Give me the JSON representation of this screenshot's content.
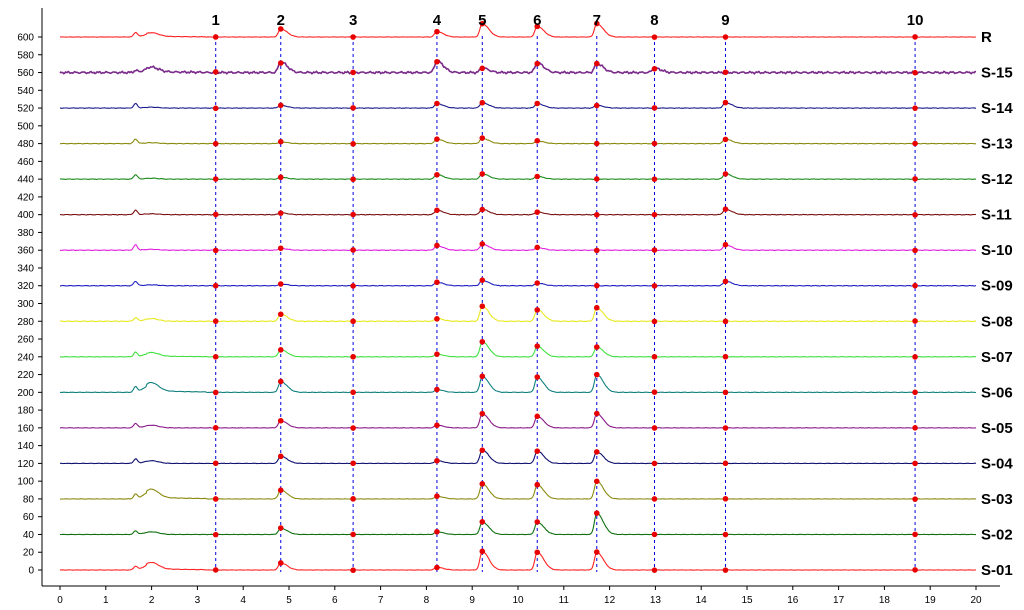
{
  "chart_data": {
    "type": "line",
    "title": "",
    "xlabel": "",
    "ylabel": "",
    "xlim": [
      0,
      20
    ],
    "ylim": [
      0,
      610
    ],
    "x_ticks": [
      0,
      1,
      2,
      3,
      4,
      5,
      6,
      7,
      8,
      9,
      10,
      11,
      12,
      13,
      14,
      15,
      16,
      17,
      18,
      19,
      20
    ],
    "y_ticks": [
      0,
      20,
      40,
      60,
      80,
      100,
      120,
      140,
      160,
      180,
      200,
      220,
      240,
      260,
      280,
      300,
      320,
      340,
      360,
      380,
      400,
      420,
      440,
      460,
      480,
      500,
      520,
      540,
      560,
      580,
      600
    ],
    "grid": false,
    "legend": "none",
    "peaks": [
      {
        "label": "1",
        "x": 3.4
      },
      {
        "label": "2",
        "x": 4.82
      },
      {
        "label": "3",
        "x": 6.4
      },
      {
        "label": "4",
        "x": 8.23
      },
      {
        "label": "5",
        "x": 9.22
      },
      {
        "label": "6",
        "x": 10.42
      },
      {
        "label": "7",
        "x": 11.72
      },
      {
        "label": "8",
        "x": 12.98
      },
      {
        "label": "9",
        "x": 14.53
      },
      {
        "label": "10",
        "x": 18.67
      }
    ],
    "bumps": [
      {
        "x": 1.65,
        "w": 0.04
      },
      {
        "x": 2.0,
        "w": 0.15
      }
    ],
    "series": [
      {
        "name": "R",
        "baseline": 600,
        "color": "#ff2020",
        "peak_heights": [
          0,
          9,
          0,
          6,
          15,
          12,
          15,
          0,
          0,
          0
        ],
        "bumps": [
          5,
          4
        ],
        "noise": 0.3
      },
      {
        "name": "S-15",
        "baseline": 560,
        "color": "#7a2a8a",
        "peak_heights": [
          0,
          12,
          0,
          13,
          5,
          11,
          10,
          5,
          0,
          0
        ],
        "bumps": [
          2,
          5
        ],
        "noise": 1.4
      },
      {
        "name": "S-14",
        "baseline": 520,
        "color": "#1a1a8a",
        "peak_heights": [
          0,
          3,
          0,
          5,
          6,
          5,
          3,
          0,
          6,
          0
        ],
        "bumps": [
          5,
          1
        ],
        "noise": 0.4
      },
      {
        "name": "S-13",
        "baseline": 480,
        "color": "#8a8a10",
        "peak_heights": [
          0,
          2,
          0,
          5,
          6,
          3,
          0,
          0,
          5,
          0
        ],
        "bumps": [
          5,
          1
        ],
        "noise": 0.4
      },
      {
        "name": "S-12",
        "baseline": 440,
        "color": "#1a8a1a",
        "peak_heights": [
          0,
          2,
          0,
          5,
          6,
          3,
          0,
          0,
          6,
          0
        ],
        "bumps": [
          5,
          1
        ],
        "noise": 0.4
      },
      {
        "name": "S-11",
        "baseline": 400,
        "color": "#7a1010",
        "peak_heights": [
          0,
          2,
          0,
          5,
          6,
          3,
          0,
          0,
          6,
          0
        ],
        "bumps": [
          5,
          1
        ],
        "noise": 0.4
      },
      {
        "name": "S-10",
        "baseline": 360,
        "color": "#e020e0",
        "peak_heights": [
          0,
          2,
          0,
          5,
          7,
          3,
          0,
          0,
          6,
          0
        ],
        "bumps": [
          6,
          1
        ],
        "noise": 0.4
      },
      {
        "name": "S-09",
        "baseline": 320,
        "color": "#2020c0",
        "peak_heights": [
          0,
          2,
          0,
          4,
          6,
          3,
          0,
          0,
          5,
          0
        ],
        "bumps": [
          5,
          1
        ],
        "noise": 0.4
      },
      {
        "name": "S-08",
        "baseline": 280,
        "color": "#e8e820",
        "peak_heights": [
          0,
          8,
          0,
          3,
          17,
          13,
          15,
          0,
          0,
          0
        ],
        "bumps": [
          4,
          3
        ],
        "noise": 0.5
      },
      {
        "name": "S-07",
        "baseline": 240,
        "color": "#40e040",
        "peak_heights": [
          0,
          8,
          0,
          3,
          17,
          12,
          11,
          0,
          0,
          0
        ],
        "bumps": [
          5,
          4
        ],
        "noise": 0.3
      },
      {
        "name": "S-06",
        "baseline": 200,
        "color": "#108080",
        "peak_heights": [
          0,
          12,
          0,
          3,
          18,
          17,
          20,
          0,
          0,
          0
        ],
        "bumps": [
          6,
          9
        ],
        "noise": 0.3
      },
      {
        "name": "S-05",
        "baseline": 160,
        "color": "#8a1a8a",
        "peak_heights": [
          0,
          8,
          0,
          3,
          16,
          13,
          16,
          0,
          0,
          0
        ],
        "bumps": [
          5,
          3
        ],
        "noise": 0.3
      },
      {
        "name": "S-04",
        "baseline": 120,
        "color": "#101070",
        "peak_heights": [
          0,
          8,
          0,
          3,
          15,
          14,
          13,
          0,
          0,
          0
        ],
        "bumps": [
          5,
          3
        ],
        "noise": 0.3
      },
      {
        "name": "S-03",
        "baseline": 80,
        "color": "#8a8a10",
        "peak_heights": [
          0,
          10,
          0,
          3,
          17,
          16,
          20,
          0,
          0,
          0
        ],
        "bumps": [
          5,
          9
        ],
        "noise": 0.3
      },
      {
        "name": "S-02",
        "baseline": 40,
        "color": "#107010",
        "peak_heights": [
          0,
          7,
          0,
          3,
          14,
          14,
          24,
          0,
          0,
          0
        ],
        "bumps": [
          4,
          3
        ],
        "noise": 0.3
      },
      {
        "name": "S-01",
        "baseline": 0,
        "color": "#ff2020",
        "peak_heights": [
          0,
          8,
          0,
          3,
          21,
          20,
          20,
          0,
          0,
          0
        ],
        "bumps": [
          4,
          7
        ],
        "noise": 0.3
      }
    ],
    "marker_color": "#e80000",
    "guide_color": "#0000e0"
  }
}
